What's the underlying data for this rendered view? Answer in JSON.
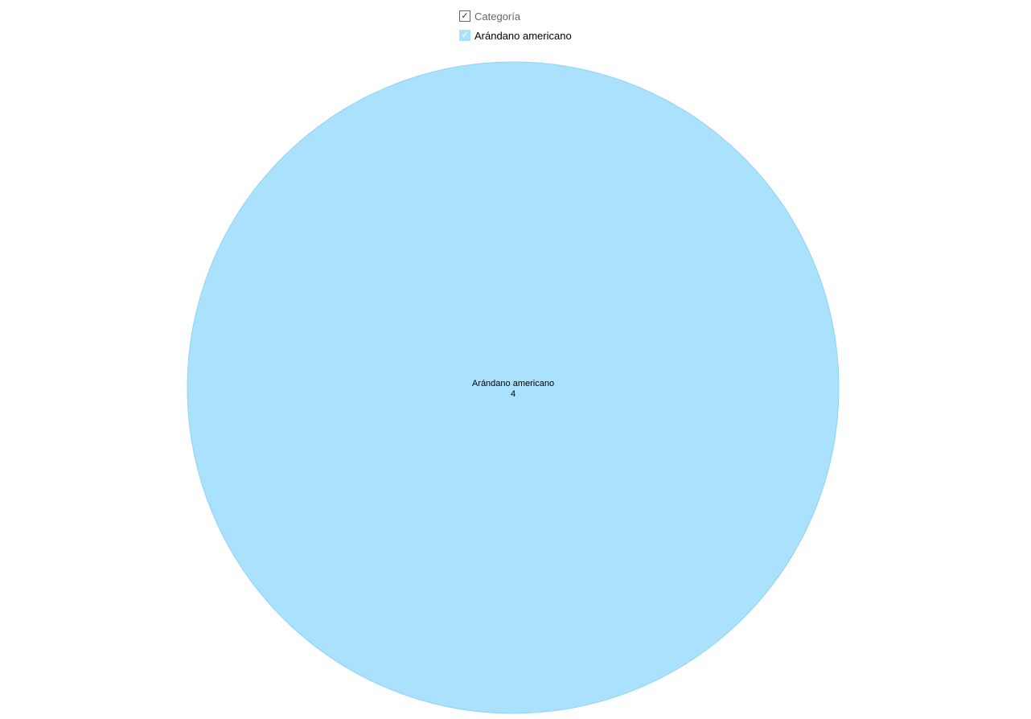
{
  "chart_data": {
    "type": "pie",
    "title": "",
    "legend": {
      "title": "Categoría",
      "placement": "top-center"
    },
    "categories": [
      "Arándano americano"
    ],
    "values": [
      4
    ],
    "colors": [
      "#aae1fc"
    ]
  }
}
